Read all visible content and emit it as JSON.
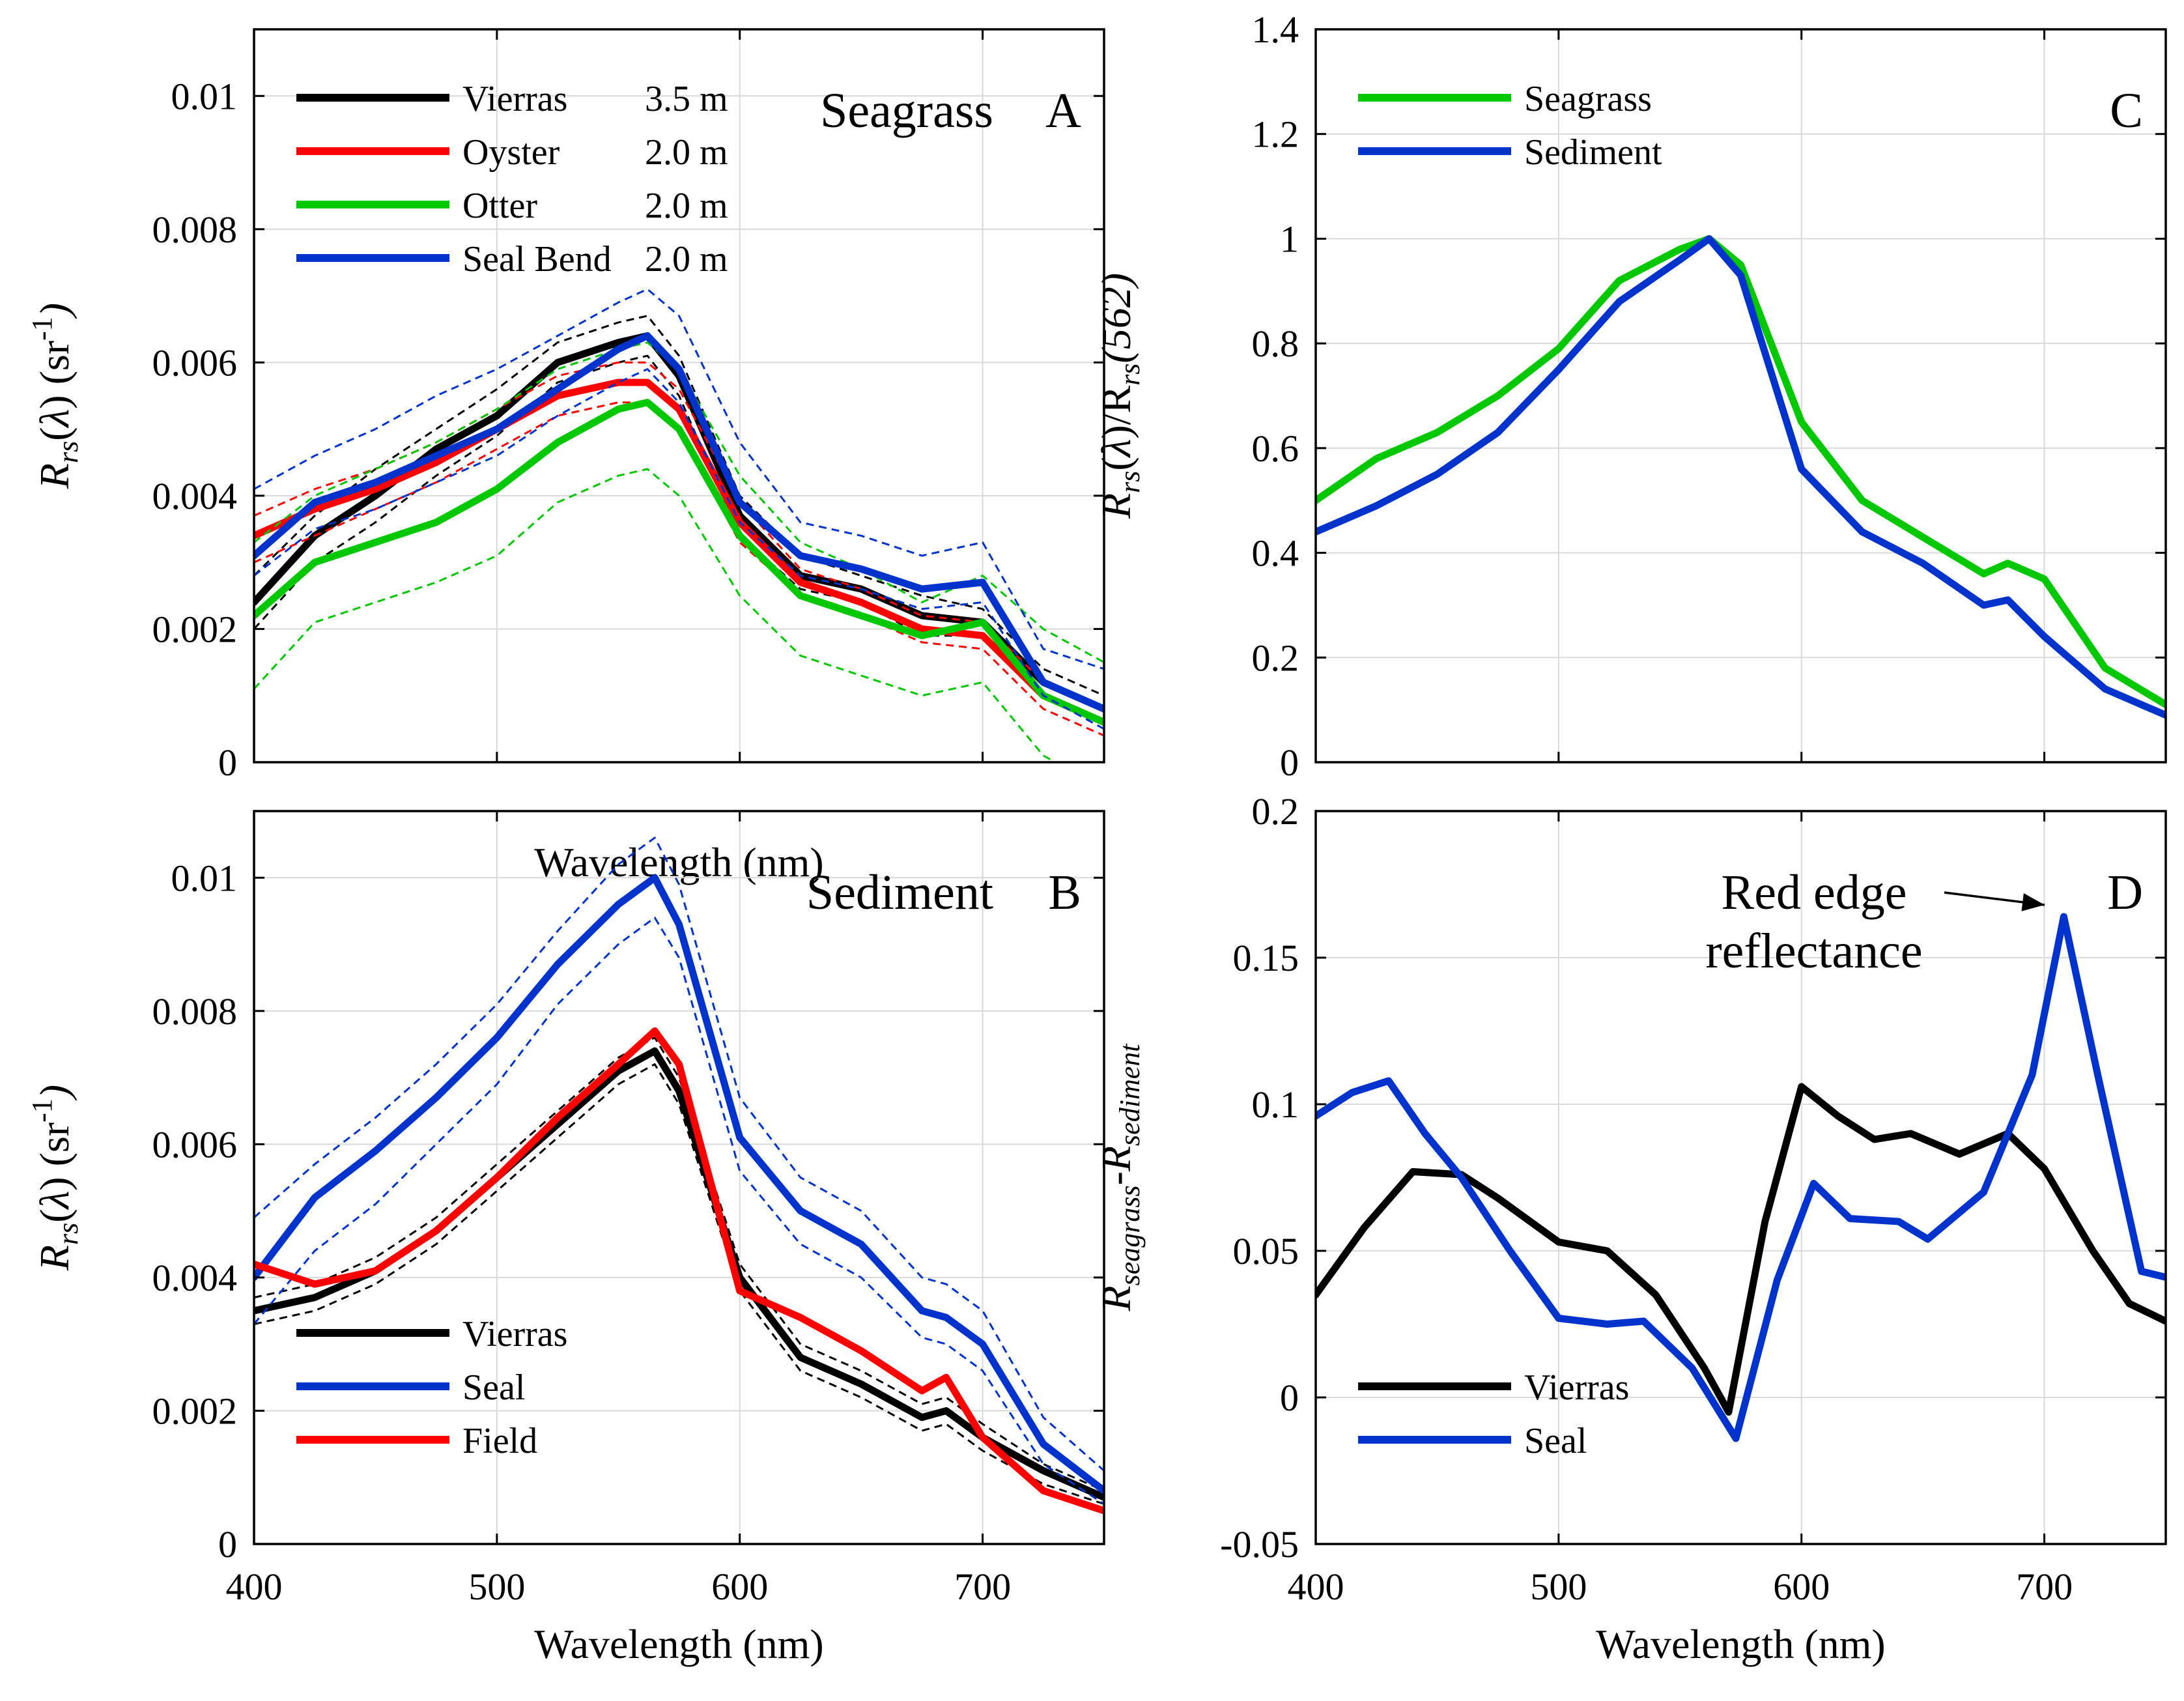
{
  "chart_data": [
    {
      "id": "A",
      "type": "line",
      "title": "Seagrass",
      "panel_letter": "A",
      "xlabel": "Wavelength (nm)",
      "ylabel": "R_rs(λ) (sr^-1)",
      "ylabel_parts": {
        "main": "R",
        "sub": "rs",
        "mid": "(λ) (sr",
        "sup": "-1",
        "end": ")"
      },
      "xlim": [
        400,
        750
      ],
      "ylim": [
        0,
        0.011
      ],
      "xticks": [
        400,
        500,
        600,
        700
      ],
      "xtick_labels": [],
      "yticks": [
        0,
        0.002,
        0.004,
        0.006,
        0.008,
        0.01
      ],
      "ytick_labels": [
        "0",
        "0.002",
        "0.004",
        "0.006",
        "0.008",
        "0.01"
      ],
      "legend_position": "top-left",
      "x": [
        400,
        425,
        450,
        475,
        500,
        525,
        550,
        562,
        575,
        600,
        625,
        650,
        675,
        700,
        725,
        750
      ],
      "series": [
        {
          "name": "Vierras",
          "depth": "3.5 m",
          "color": "#000000",
          "values": [
            0.0024,
            0.0034,
            0.004,
            0.0047,
            0.0052,
            0.006,
            0.0063,
            0.0064,
            0.0058,
            0.0037,
            0.0028,
            0.0026,
            0.0022,
            0.0021,
            0.0012,
            0.0008
          ],
          "dashed": [
            [
              0.0028,
              0.0037,
              0.0044,
              0.005,
              0.0056,
              0.0063,
              0.0066,
              0.0067,
              0.0061,
              0.004,
              0.0031,
              0.0028,
              0.0025,
              0.0023,
              0.0014,
              0.001
            ],
            [
              0.002,
              0.003,
              0.0036,
              0.0043,
              0.0049,
              0.0057,
              0.006,
              0.0061,
              0.0055,
              0.0034,
              0.0026,
              0.0024,
              0.0019,
              0.0019,
              0.001,
              0.0006
            ]
          ]
        },
        {
          "name": "Oyster",
          "depth": "2.0 m",
          "color": "#ff0000",
          "values": [
            0.0034,
            0.0038,
            0.0041,
            0.0045,
            0.005,
            0.0055,
            0.0057,
            0.0057,
            0.0053,
            0.0036,
            0.0027,
            0.0024,
            0.002,
            0.0019,
            0.001,
            0.0006
          ],
          "dashed": [
            [
              0.0037,
              0.0041,
              0.0044,
              0.0048,
              0.0053,
              0.0058,
              0.006,
              0.006,
              0.0056,
              0.0039,
              0.0029,
              0.0026,
              0.0022,
              0.0021,
              0.0012,
              0.0008
            ],
            [
              0.003,
              0.0034,
              0.0038,
              0.0042,
              0.0047,
              0.0052,
              0.0054,
              0.0054,
              0.005,
              0.0033,
              0.0025,
              0.0022,
              0.0018,
              0.0017,
              0.0008,
              0.0004
            ]
          ]
        },
        {
          "name": "Otter",
          "depth": "2.0 m",
          "color": "#00c800",
          "values": [
            0.0022,
            0.003,
            0.0033,
            0.0036,
            0.0041,
            0.0048,
            0.0053,
            0.0054,
            0.005,
            0.0034,
            0.0025,
            0.0022,
            0.0019,
            0.0021,
            0.001,
            0.0006
          ],
          "dashed": [
            [
              0.0033,
              0.004,
              0.0044,
              0.0048,
              0.0053,
              0.0059,
              0.0062,
              0.0063,
              0.0059,
              0.0043,
              0.0033,
              0.0029,
              0.0024,
              0.0028,
              0.002,
              0.0015
            ],
            [
              0.0011,
              0.0021,
              0.0024,
              0.0027,
              0.0031,
              0.0039,
              0.0043,
              0.0044,
              0.004,
              0.0025,
              0.0016,
              0.0013,
              0.001,
              0.0012,
              0.0001,
              -0.0004
            ]
          ]
        },
        {
          "name": "Seal Bend",
          "depth": "2.0 m",
          "color": "#0033cc",
          "values": [
            0.0031,
            0.0039,
            0.0042,
            0.0046,
            0.005,
            0.0056,
            0.0062,
            0.0064,
            0.0059,
            0.0039,
            0.0031,
            0.0029,
            0.0026,
            0.0027,
            0.0012,
            0.0008
          ],
          "dashed": [
            [
              0.0041,
              0.0046,
              0.005,
              0.0055,
              0.0059,
              0.0064,
              0.0069,
              0.0071,
              0.0067,
              0.0048,
              0.0036,
              0.0034,
              0.0031,
              0.0033,
              0.0017,
              0.0014
            ],
            [
              0.0028,
              0.0035,
              0.0038,
              0.0042,
              0.0046,
              0.0052,
              0.0057,
              0.0059,
              0.0054,
              0.0036,
              0.0028,
              0.0026,
              0.0023,
              0.0024,
              0.001,
              0.0005
            ]
          ]
        }
      ]
    },
    {
      "id": "B",
      "type": "line",
      "title": "Sediment",
      "panel_letter": "B",
      "xlabel": "Wavelength (nm)",
      "ylabel": "R_rs(λ) (sr^-1)",
      "ylabel_parts": {
        "main": "R",
        "sub": "rs",
        "mid": "(λ) (sr",
        "sup": "-1",
        "end": ")"
      },
      "xlim": [
        400,
        750
      ],
      "ylim": [
        0,
        0.011
      ],
      "xticks": [
        400,
        500,
        600,
        700
      ],
      "xtick_labels": [
        "400",
        "500",
        "600",
        "700"
      ],
      "yticks": [
        0,
        0.002,
        0.004,
        0.006,
        0.008,
        0.01
      ],
      "ytick_labels": [
        "0",
        "0.002",
        "0.004",
        "0.006",
        "0.008",
        "0.01"
      ],
      "legend_position": "bottom-left",
      "x": [
        400,
        425,
        450,
        475,
        500,
        525,
        550,
        565,
        575,
        600,
        625,
        650,
        675,
        685,
        700,
        725,
        750
      ],
      "series": [
        {
          "name": "Vierras",
          "color": "#000000",
          "values": [
            0.0035,
            0.0037,
            0.0041,
            0.0047,
            0.0055,
            0.0063,
            0.0071,
            0.0074,
            0.0068,
            0.004,
            0.0028,
            0.0024,
            0.0019,
            0.002,
            0.0016,
            0.0011,
            0.0007
          ],
          "dashed": [
            [
              0.0037,
              0.0039,
              0.0043,
              0.0049,
              0.0057,
              0.0065,
              0.0073,
              0.0076,
              0.007,
              0.0042,
              0.003,
              0.0026,
              0.0021,
              0.0022,
              0.0018,
              0.0012,
              0.0008
            ],
            [
              0.0033,
              0.0035,
              0.0039,
              0.0045,
              0.0053,
              0.0061,
              0.0069,
              0.0072,
              0.0066,
              0.0038,
              0.0026,
              0.0022,
              0.0017,
              0.0018,
              0.0014,
              0.0009,
              0.0006
            ]
          ]
        },
        {
          "name": "Seal",
          "color": "#0033cc",
          "values": [
            0.004,
            0.0052,
            0.0059,
            0.0067,
            0.0076,
            0.0087,
            0.0096,
            0.01,
            0.0093,
            0.0061,
            0.005,
            0.0045,
            0.0035,
            0.0034,
            0.003,
            0.0015,
            0.0008
          ],
          "dashed": [
            [
              0.0049,
              0.0057,
              0.0064,
              0.0072,
              0.0081,
              0.0092,
              0.0102,
              0.0106,
              0.0099,
              0.0067,
              0.0055,
              0.005,
              0.004,
              0.0039,
              0.0035,
              0.0019,
              0.0011
            ],
            [
              0.0033,
              0.0044,
              0.0051,
              0.006,
              0.0069,
              0.0081,
              0.009,
              0.0094,
              0.0088,
              0.0056,
              0.0045,
              0.004,
              0.0031,
              0.003,
              0.0026,
              0.0012,
              0.0006
            ]
          ]
        },
        {
          "name": "Field",
          "color": "#ff0000",
          "values": [
            0.0042,
            0.0039,
            0.0041,
            0.0047,
            0.0055,
            0.0064,
            0.0072,
            0.0077,
            0.0072,
            0.0038,
            0.0034,
            0.0029,
            0.0023,
            0.0025,
            0.0016,
            0.0008,
            0.0005
          ]
        }
      ]
    },
    {
      "id": "C",
      "type": "line",
      "title": "",
      "panel_letter": "C",
      "xlabel": "",
      "ylabel": "R_rs(λ)/R_rs(562)",
      "ylabel_parts": {
        "main": "R",
        "sub": "rs",
        "mid": "(λ)/R",
        "sub2": "rs",
        "end": "(562)"
      },
      "xlim": [
        400,
        750
      ],
      "ylim": [
        0,
        1.4
      ],
      "xticks": [
        400,
        500,
        600,
        700
      ],
      "xtick_labels": [],
      "yticks": [
        0,
        0.2,
        0.4,
        0.6,
        0.8,
        1,
        1.2,
        1.4
      ],
      "ytick_labels": [
        "0",
        "0.2",
        "0.4",
        "0.6",
        "0.8",
        "1",
        "1.2",
        "1.4"
      ],
      "legend_position": "top-left",
      "x": [
        400,
        425,
        450,
        475,
        500,
        525,
        550,
        562,
        575,
        600,
        625,
        650,
        675,
        685,
        700,
        725,
        750
      ],
      "series": [
        {
          "name": "Seagrass",
          "color": "#00c800",
          "values": [
            0.5,
            0.58,
            0.63,
            0.7,
            0.79,
            0.92,
            0.98,
            1.0,
            0.95,
            0.65,
            0.5,
            0.43,
            0.36,
            0.38,
            0.35,
            0.18,
            0.11
          ]
        },
        {
          "name": "Sediment",
          "color": "#0033cc",
          "values": [
            0.44,
            0.49,
            0.55,
            0.63,
            0.75,
            0.88,
            0.96,
            1.0,
            0.93,
            0.56,
            0.44,
            0.38,
            0.3,
            0.31,
            0.24,
            0.14,
            0.09
          ]
        }
      ]
    },
    {
      "id": "D",
      "type": "line",
      "title": "",
      "panel_letter": "D",
      "xlabel": "Wavelength (nm)",
      "ylabel": "R_seagrass - R_sediment",
      "ylabel_parts": {
        "main": "R",
        "sub": "seagrass",
        "mid": "-R",
        "sub2": "sediment"
      },
      "xlim": [
        400,
        750
      ],
      "ylim": [
        -0.05,
        0.2
      ],
      "xticks": [
        400,
        500,
        600,
        700
      ],
      "xtick_labels": [
        "400",
        "500",
        "600",
        "700"
      ],
      "yticks": [
        -0.05,
        0,
        0.05,
        0.1,
        0.15,
        0.2
      ],
      "ytick_labels": [
        "-0.05",
        "0",
        "0.05",
        "0.1",
        "0.15",
        "0.2"
      ],
      "legend_position": "bottom-left",
      "annotation": {
        "text_line1": "Red edge",
        "text_line2": "reflectance",
        "target_x": 706,
        "target_y": 0.164
      },
      "series": [
        {
          "name": "Vierras",
          "color": "#000000",
          "x": [
            400,
            420,
            440,
            460,
            475,
            500,
            520,
            540,
            560,
            570,
            585,
            600,
            615,
            630,
            645,
            665,
            685,
            700,
            720,
            735,
            750
          ],
          "values": [
            0.035,
            0.058,
            0.077,
            0.076,
            0.068,
            0.053,
            0.05,
            0.035,
            0.01,
            -0.005,
            0.06,
            0.106,
            0.096,
            0.088,
            0.09,
            0.083,
            0.09,
            0.078,
            0.05,
            0.032,
            0.026
          ]
        },
        {
          "name": "Seal",
          "color": "#0033cc",
          "x": [
            400,
            415,
            430,
            445,
            460,
            480,
            500,
            520,
            535,
            555,
            573,
            590,
            605,
            620,
            640,
            652,
            675,
            695,
            708,
            722,
            740,
            750
          ],
          "values": [
            0.096,
            0.104,
            0.108,
            0.09,
            0.075,
            0.05,
            0.027,
            0.025,
            0.026,
            0.01,
            -0.014,
            0.04,
            0.073,
            0.061,
            0.06,
            0.054,
            0.07,
            0.11,
            0.164,
            0.11,
            0.043,
            0.041
          ]
        }
      ]
    }
  ]
}
